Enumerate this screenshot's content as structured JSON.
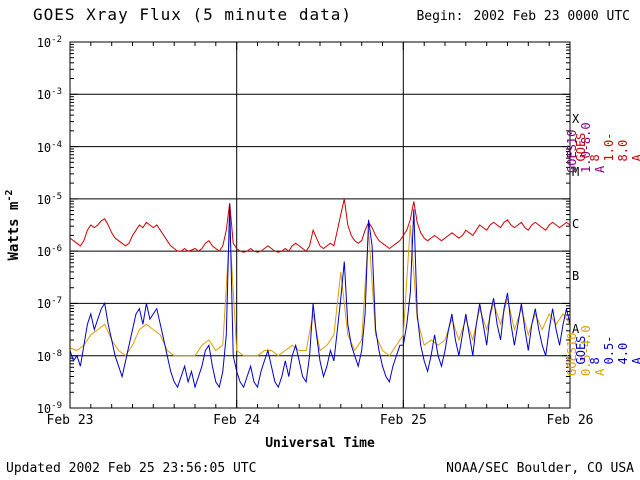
{
  "header": {
    "title": "GOES Xray Flux (5 minute data)",
    "begin_label": "Begin:",
    "begin_value": "2002 Feb 23 0000 UTC"
  },
  "footer": {
    "updated": "Updated 2002 Feb 25 23:56:05 UTC",
    "credit": "NOAA/SEC Boulder, CO USA"
  },
  "chart_data": {
    "type": "line",
    "title": "GOES Xray Flux (5 minute data)",
    "xlabel": "Universal Time",
    "ylabel": {
      "text": "Watts m",
      "sup": "-2"
    },
    "x_ticks": [
      "Feb 23",
      "Feb 24",
      "Feb 25",
      "Feb 26"
    ],
    "x_range_hours": [
      0,
      72
    ],
    "y_tick_exponents": [
      -2,
      -3,
      -4,
      -5,
      -6,
      -7,
      -8,
      -9
    ],
    "grid_exponents": [
      -3,
      -4,
      -5,
      -6,
      -7,
      -8
    ],
    "day_lines_hours": [
      24,
      48
    ],
    "grid": "horizontal decade lines and vertical day lines, log y-axis 1e-9 to 1e-2 W/m^2",
    "flare_classes": [
      {
        "label": "X",
        "center_exponent": -3.5
      },
      {
        "label": "M",
        "center_exponent": -4.5
      },
      {
        "label": "C",
        "center_exponent": -5.5
      },
      {
        "label": "B",
        "center_exponent": -6.5
      },
      {
        "label": "A",
        "center_exponent": -7.5
      }
    ],
    "legend": [
      {
        "label": "GOES10 1.0-8.0 A",
        "color": "#800080"
      },
      {
        "label": "GOES 8 1.0-8.0 A",
        "color": "#cc0000"
      },
      {
        "label": "GOES10 0.5-4.0 A",
        "color": "#dda000"
      },
      {
        "label": "GOES 8 0.5-4.0 A",
        "color": "#0000cc"
      }
    ],
    "y_values_encoding": "log10 of X-ray flux in W m^-2, sampled from plot",
    "series": [
      {
        "name": "GOES10 1.0-8.0 A",
        "color": "#800080",
        "step_hours": 0.5,
        "log10_values": []
      },
      {
        "name": "GOES10 0.5-4.0 A",
        "color": "#dda000",
        "step_hours": 1,
        "log10_values": [
          -7.85,
          -7.9,
          -7.8,
          -7.6,
          -7.5,
          -7.4,
          -7.7,
          -7.9,
          -8.0,
          -7.8,
          -7.5,
          -7.4,
          -7.5,
          -7.6,
          -7.9,
          -8.0,
          -8.0,
          -8.0,
          -8.0,
          -7.8,
          -7.7,
          -7.9,
          -7.8,
          -5.6,
          -7.9,
          -8.0,
          -8.0,
          -8.0,
          -7.9,
          -7.9,
          -8.0,
          -7.9,
          -7.8,
          -7.9,
          -7.9,
          -7.2,
          -7.9,
          -7.8,
          -7.6,
          -6.4,
          -7.6,
          -7.9,
          -7.7,
          -5.6,
          -7.6,
          -7.9,
          -8.0,
          -7.8,
          -7.6,
          -5.5,
          -7.3,
          -7.8,
          -7.7,
          -7.8,
          -7.7,
          -7.3,
          -7.7,
          -7.3,
          -7.7,
          -7.1,
          -7.5,
          -7.0,
          -7.4,
          -6.9,
          -7.5,
          -7.1,
          -7.6,
          -7.2,
          -7.5,
          -7.2,
          -7.4,
          -7.2,
          -7.4
        ]
      },
      {
        "name": "GOES 8 1.0-8.0 A",
        "color": "#cc0000",
        "step_hours": 0.5,
        "log10_values": [
          -5.75,
          -5.8,
          -5.85,
          -5.9,
          -5.8,
          -5.6,
          -5.5,
          -5.55,
          -5.5,
          -5.42,
          -5.38,
          -5.5,
          -5.65,
          -5.75,
          -5.8,
          -5.85,
          -5.9,
          -5.85,
          -5.7,
          -5.6,
          -5.5,
          -5.55,
          -5.45,
          -5.5,
          -5.55,
          -5.5,
          -5.6,
          -5.7,
          -5.8,
          -5.9,
          -5.95,
          -6.0,
          -6.0,
          -5.95,
          -6.0,
          -5.98,
          -5.95,
          -6.0,
          -5.95,
          -5.85,
          -5.8,
          -5.9,
          -5.95,
          -6.0,
          -5.9,
          -5.6,
          -5.08,
          -5.85,
          -5.95,
          -6.0,
          -6.02,
          -6.0,
          -5.95,
          -6.0,
          -6.02,
          -6.0,
          -5.95,
          -5.9,
          -5.95,
          -6.0,
          -6.02,
          -6.0,
          -5.95,
          -6.0,
          -5.9,
          -5.85,
          -5.9,
          -5.95,
          -6.0,
          -5.9,
          -5.6,
          -5.75,
          -5.9,
          -5.95,
          -5.9,
          -5.85,
          -5.9,
          -5.6,
          -5.3,
          -5.0,
          -5.5,
          -5.7,
          -5.8,
          -5.85,
          -5.8,
          -5.6,
          -5.45,
          -5.55,
          -5.7,
          -5.8,
          -5.85,
          -5.9,
          -5.95,
          -5.9,
          -5.85,
          -5.8,
          -5.7,
          -5.6,
          -5.4,
          -5.05,
          -5.45,
          -5.65,
          -5.75,
          -5.8,
          -5.75,
          -5.7,
          -5.75,
          -5.8,
          -5.75,
          -5.7,
          -5.65,
          -5.7,
          -5.75,
          -5.7,
          -5.6,
          -5.65,
          -5.7,
          -5.6,
          -5.5,
          -5.55,
          -5.6,
          -5.5,
          -5.45,
          -5.5,
          -5.55,
          -5.45,
          -5.4,
          -5.5,
          -5.55,
          -5.5,
          -5.45,
          -5.55,
          -5.6,
          -5.5,
          -5.45,
          -5.5,
          -5.55,
          -5.6,
          -5.5,
          -5.45,
          -5.5,
          -5.55,
          -5.5,
          -5.45,
          -5.5
        ]
      },
      {
        "name": "GOES 8 0.5-4.0 A",
        "color": "#0000cc",
        "step_hours": 0.5,
        "log10_values": [
          -7.9,
          -8.1,
          -8.0,
          -8.2,
          -7.8,
          -7.4,
          -7.2,
          -7.5,
          -7.3,
          -7.1,
          -7.0,
          -7.4,
          -7.7,
          -8.0,
          -8.2,
          -8.4,
          -8.1,
          -7.8,
          -7.5,
          -7.2,
          -7.1,
          -7.4,
          -7.0,
          -7.3,
          -7.2,
          -7.1,
          -7.4,
          -7.7,
          -8.0,
          -8.3,
          -8.5,
          -8.6,
          -8.4,
          -8.2,
          -8.5,
          -8.3,
          -8.6,
          -8.4,
          -8.2,
          -7.9,
          -7.8,
          -8.2,
          -8.5,
          -8.6,
          -8.3,
          -7.6,
          -5.1,
          -8.0,
          -8.3,
          -8.5,
          -8.6,
          -8.4,
          -8.2,
          -8.5,
          -8.6,
          -8.3,
          -8.1,
          -7.9,
          -8.2,
          -8.5,
          -8.6,
          -8.4,
          -8.1,
          -8.4,
          -8.0,
          -7.8,
          -8.1,
          -8.4,
          -8.5,
          -8.0,
          -7.0,
          -7.6,
          -8.1,
          -8.4,
          -8.2,
          -7.9,
          -8.1,
          -7.5,
          -6.9,
          -6.2,
          -7.4,
          -7.8,
          -8.0,
          -8.2,
          -7.9,
          -7.2,
          -5.4,
          -5.9,
          -7.5,
          -7.9,
          -8.2,
          -8.4,
          -8.5,
          -8.2,
          -8.0,
          -7.8,
          -7.8,
          -7.4,
          -6.8,
          -5.2,
          -7.2,
          -7.8,
          -8.1,
          -8.3,
          -8.0,
          -7.6,
          -8.0,
          -8.2,
          -7.9,
          -7.5,
          -7.2,
          -7.7,
          -8.0,
          -7.6,
          -7.2,
          -7.6,
          -8.0,
          -7.4,
          -7.0,
          -7.4,
          -7.8,
          -7.2,
          -6.9,
          -7.4,
          -7.7,
          -7.1,
          -6.8,
          -7.4,
          -7.8,
          -7.4,
          -7.0,
          -7.5,
          -7.9,
          -7.4,
          -7.1,
          -7.5,
          -7.8,
          -8.0,
          -7.5,
          -7.1,
          -7.5,
          -7.8,
          -7.4,
          -7.1,
          -7.4
        ]
      }
    ]
  }
}
